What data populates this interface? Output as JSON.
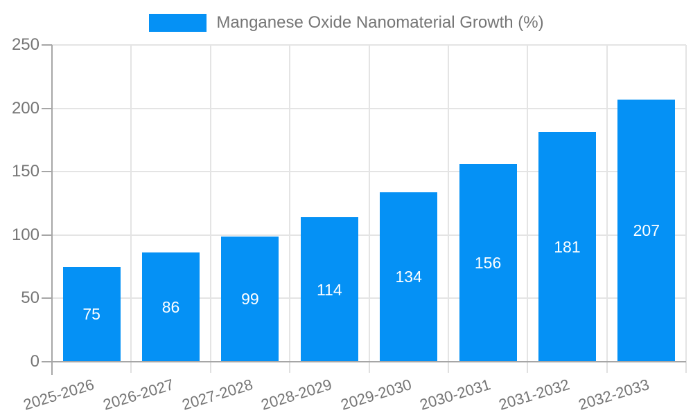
{
  "chart_data": {
    "type": "bar",
    "title": "",
    "xlabel": "",
    "ylabel": "",
    "legend": {
      "label": "Manganese Oxide Nanomaterial Growth (%)",
      "position": "top",
      "swatch_color": "#0591f5"
    },
    "categories": [
      "2025-2026",
      "2026-2027",
      "2027-2028",
      "2028-2029",
      "2029-2030",
      "2030-2031",
      "2031-2032",
      "2032-2033"
    ],
    "series": [
      {
        "name": "Manganese Oxide Nanomaterial Growth (%)",
        "values": [
          75,
          86,
          99,
          114,
          134,
          156,
          181,
          207
        ]
      }
    ],
    "value_labels_shown": true,
    "ylim": [
      0,
      250
    ],
    "yticks": [
      0,
      50,
      100,
      150,
      200,
      250
    ],
    "grid": true,
    "colors": {
      "bar": "#0591f5",
      "grid": "#e4e4e4",
      "axis": "#a6a6a6",
      "tick_text": "#757575",
      "value_label": "#ffffff",
      "background": "#ffffff"
    }
  }
}
